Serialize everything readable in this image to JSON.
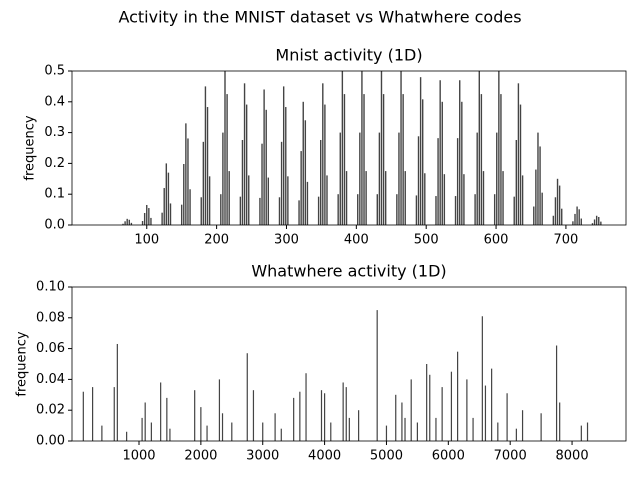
{
  "title": "Activity in the MNIST dataset vs Whatwhere codes",
  "chart_data": [
    {
      "type": "bar",
      "title": "Mnist activity (1D)",
      "ylabel": "frequency",
      "color": "#444444",
      "xlim": [
        -7,
        786
      ],
      "xticks": [
        100,
        200,
        300,
        400,
        500,
        600,
        700
      ],
      "ylim": [
        0,
        0.5
      ],
      "yticks": [
        {
          "value": 0,
          "label": "0.0"
        },
        0.1,
        0.2,
        0.3,
        0.4,
        0.5
      ],
      "x": [
        66,
        69,
        72,
        75,
        78,
        94,
        97,
        100,
        103,
        106,
        122,
        125,
        128,
        131,
        134,
        150,
        153,
        156,
        159,
        162,
        178,
        181,
        184,
        187,
        190,
        206,
        209,
        212,
        215,
        218,
        234,
        237,
        240,
        243,
        246,
        262,
        265,
        268,
        271,
        274,
        290,
        293,
        296,
        299,
        302,
        318,
        321,
        324,
        327,
        330,
        346,
        349,
        352,
        355,
        358,
        374,
        377,
        380,
        383,
        386,
        402,
        405,
        408,
        411,
        414,
        430,
        433,
        436,
        439,
        442,
        458,
        461,
        464,
        467,
        470,
        486,
        489,
        492,
        495,
        498,
        514,
        517,
        520,
        523,
        526,
        542,
        545,
        548,
        551,
        554,
        570,
        573,
        576,
        579,
        582,
        598,
        601,
        604,
        607,
        610,
        626,
        629,
        632,
        635,
        638,
        654,
        657,
        660,
        663,
        666,
        682,
        685,
        688,
        691,
        694,
        710,
        713,
        716,
        719,
        722,
        738,
        741,
        744,
        747,
        750
      ],
      "values": [
        0.004,
        0.012,
        0.02,
        0.017,
        0.007,
        0.013,
        0.039,
        0.065,
        0.055,
        0.023,
        0.04,
        0.12,
        0.2,
        0.17,
        0.07,
        0.066,
        0.198,
        0.33,
        0.281,
        0.116,
        0.09,
        0.27,
        0.45,
        0.383,
        0.158,
        0.1,
        0.3,
        0.5,
        0.425,
        0.175,
        0.092,
        0.276,
        0.46,
        0.391,
        0.161,
        0.088,
        0.264,
        0.44,
        0.374,
        0.154,
        0.09,
        0.27,
        0.45,
        0.383,
        0.158,
        0.08,
        0.24,
        0.4,
        0.34,
        0.14,
        0.092,
        0.276,
        0.46,
        0.391,
        0.161,
        0.1,
        0.3,
        0.5,
        0.425,
        0.175,
        0.1,
        0.3,
        0.5,
        0.425,
        0.175,
        0.1,
        0.3,
        0.5,
        0.425,
        0.175,
        0.1,
        0.3,
        0.5,
        0.425,
        0.175,
        0.096,
        0.288,
        0.48,
        0.408,
        0.168,
        0.094,
        0.282,
        0.47,
        0.4,
        0.165,
        0.094,
        0.282,
        0.47,
        0.4,
        0.165,
        0.1,
        0.3,
        0.5,
        0.425,
        0.175,
        0.1,
        0.3,
        0.5,
        0.425,
        0.175,
        0.092,
        0.276,
        0.46,
        0.391,
        0.161,
        0.06,
        0.18,
        0.3,
        0.255,
        0.105,
        0.03,
        0.09,
        0.15,
        0.128,
        0.053,
        0.012,
        0.036,
        0.06,
        0.051,
        0.021,
        0.006,
        0.018,
        0.03,
        0.026,
        0.011
      ]
    },
    {
      "type": "bar",
      "title": "Whatwhere activity (1D)",
      "ylabel": "frequency",
      "color": "#444444",
      "xlim": [
        -83,
        8872
      ],
      "xticks": [
        1000,
        2000,
        3000,
        4000,
        5000,
        6000,
        7000,
        8000
      ],
      "ylim": [
        0,
        0.1
      ],
      "yticks": [
        {
          "value": 0,
          "label": "0.00"
        },
        {
          "value": 0.02,
          "label": "0.02"
        },
        {
          "value": 0.04,
          "label": "0.04"
        },
        {
          "value": 0.06,
          "label": "0.06"
        },
        {
          "value": 0.08,
          "label": "0.08"
        },
        {
          "value": 0.1,
          "label": "0.10"
        }
      ],
      "x": [
        100,
        250,
        400,
        600,
        650,
        800,
        1050,
        1100,
        1200,
        1350,
        1450,
        1500,
        1900,
        2000,
        2100,
        2300,
        2350,
        2500,
        2750,
        2850,
        3000,
        3200,
        3300,
        3500,
        3600,
        3700,
        3950,
        4000,
        4100,
        4300,
        4350,
        4400,
        4550,
        4850,
        5000,
        5150,
        5250,
        5300,
        5400,
        5500,
        5650,
        5700,
        5800,
        5900,
        6050,
        6150,
        6300,
        6400,
        6550,
        6600,
        6700,
        6800,
        6950,
        7100,
        7200,
        7500,
        7750,
        7800,
        8150,
        8250
      ],
      "values": [
        0.032,
        0.035,
        0.01,
        0.035,
        0.063,
        0.006,
        0.015,
        0.025,
        0.012,
        0.038,
        0.028,
        0.008,
        0.033,
        0.022,
        0.01,
        0.04,
        0.018,
        0.012,
        0.057,
        0.033,
        0.012,
        0.018,
        0.008,
        0.028,
        0.032,
        0.044,
        0.033,
        0.031,
        0.012,
        0.038,
        0.035,
        0.015,
        0.02,
        0.085,
        0.01,
        0.03,
        0.025,
        0.015,
        0.04,
        0.012,
        0.05,
        0.043,
        0.015,
        0.035,
        0.045,
        0.058,
        0.04,
        0.015,
        0.081,
        0.036,
        0.047,
        0.012,
        0.031,
        0.008,
        0.02,
        0.018,
        0.062,
        0.025,
        0.01,
        0.012
      ]
    }
  ]
}
